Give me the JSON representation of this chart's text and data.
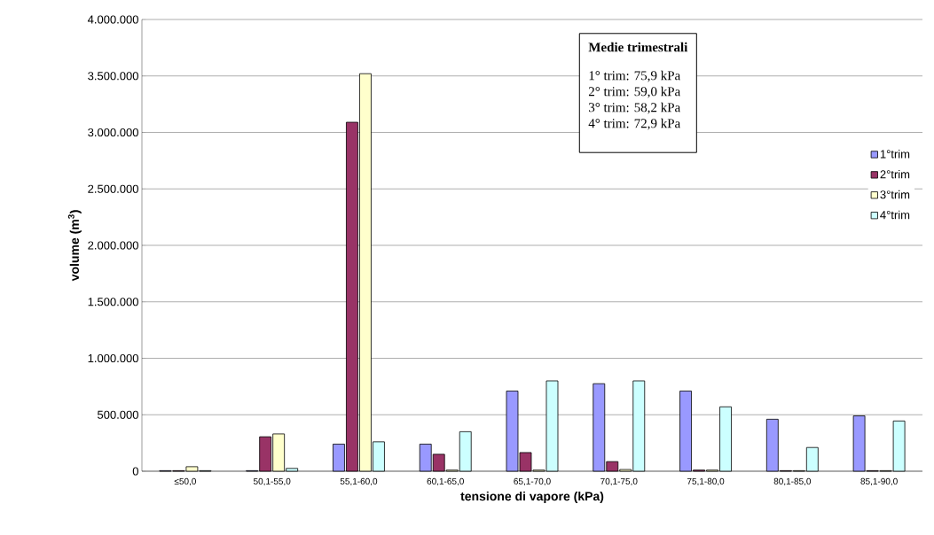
{
  "chart_data": {
    "type": "bar",
    "xlabel": "tensione di vapore (kPa)",
    "ylabel": "volume (m$^{3}$)",
    "categories": [
      "≤50,0",
      "50,1-55,0",
      "55,1-60,0",
      "60,1-65,0",
      "65,1-70,0",
      "70,1-75,0",
      "75,1-80,0",
      "80,1-85,0",
      "85,1-90,0"
    ],
    "series": [
      {
        "name": "1°trim",
        "color": "#9999ff",
        "values": [
          5000,
          5000,
          240000,
          240000,
          710000,
          775000,
          710000,
          460000,
          490000
        ]
      },
      {
        "name": "2°trim",
        "color": "#993366",
        "values": [
          5000,
          305000,
          3090000,
          150000,
          165000,
          85000,
          10000,
          5000,
          5000
        ]
      },
      {
        "name": "3°trim",
        "color": "#ffffcc",
        "values": [
          40000,
          330000,
          3520000,
          10000,
          10000,
          15000,
          10000,
          5000,
          5000
        ]
      },
      {
        "name": "4°trim",
        "color": "#ccffff",
        "values": [
          5000,
          25000,
          260000,
          350000,
          800000,
          800000,
          570000,
          210000,
          445000
        ]
      }
    ],
    "ylim": [
      0,
      4000000
    ],
    "yticks": [
      {
        "value": 0,
        "label": "0"
      },
      {
        "value": 500000,
        "label": "500.000"
      },
      {
        "value": 1000000,
        "label": "1.000.000"
      },
      {
        "value": 1500000,
        "label": "1.500.000"
      },
      {
        "value": 2000000,
        "label": "2.000.000"
      },
      {
        "value": 2500000,
        "label": "2.500.000"
      },
      {
        "value": 3000000,
        "label": "3.000.000"
      },
      {
        "value": 3500000,
        "label": "3.500.000"
      },
      {
        "value": 4000000,
        "label": "4.000.000"
      }
    ],
    "grid": "y",
    "legend": "right",
    "annotations": [
      "Medie trimestrali",
      "1° trim: 75,9 kPa",
      "2° trim: 59,0 kPa",
      "3° trim: 58,2 kPa",
      "4° trim: 72,9 kPa"
    ]
  }
}
